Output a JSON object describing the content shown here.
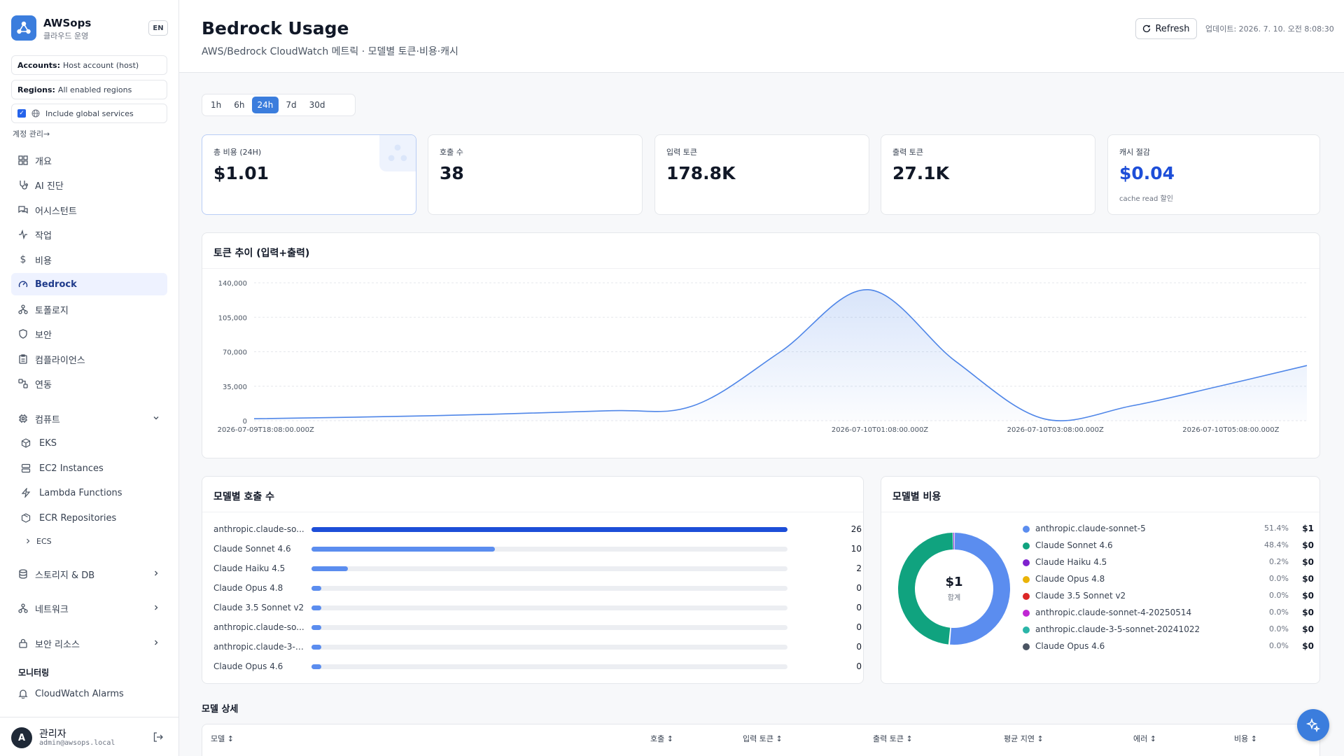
{
  "app": {
    "name": "AWSops",
    "subtitle": "클라우드 운영",
    "lang": "EN"
  },
  "filters": {
    "accounts_label": "Accounts:",
    "accounts_value": "Host account (host)",
    "regions_label": "Regions:",
    "regions_value": "All enabled regions",
    "include_global": "Include global services",
    "account_link": "계정 관리→"
  },
  "nav": {
    "items": [
      {
        "label": "개요",
        "icon": "grid-icon"
      },
      {
        "label": "AI 진단",
        "icon": "stethoscope-icon"
      },
      {
        "label": "어시스턴트",
        "icon": "chat-icon"
      },
      {
        "label": "작업",
        "icon": "activity-icon"
      },
      {
        "label": "비용",
        "icon": "dollar-icon"
      },
      {
        "label": "Bedrock",
        "icon": "gauge-icon"
      },
      {
        "label": "토폴로지",
        "icon": "network-icon"
      },
      {
        "label": "보안",
        "icon": "shield-icon"
      },
      {
        "label": "컴플라이언스",
        "icon": "clipboard-icon"
      },
      {
        "label": "연동",
        "icon": "link-icon"
      }
    ],
    "compute": {
      "label": "컴퓨트",
      "icon": "cpu-icon"
    },
    "compute_items": [
      {
        "label": "EKS",
        "icon": "box-icon"
      },
      {
        "label": "EC2 Instances",
        "icon": "server-icon"
      },
      {
        "label": "Lambda Functions",
        "icon": "bolt-icon"
      },
      {
        "label": "ECR Repositories",
        "icon": "package-icon"
      },
      {
        "label": "ECS",
        "icon": "chevron-right-icon"
      }
    ],
    "storage": {
      "label": "스토리지 & DB",
      "icon": "database-icon"
    },
    "network": {
      "label": "네트워크",
      "icon": "network-icon"
    },
    "security_resources": {
      "label": "보안 리소스",
      "icon": "lock-icon"
    },
    "monitoring_label": "모니터링",
    "cloudwatch": {
      "label": "CloudWatch Alarms",
      "icon": "bell-icon"
    }
  },
  "user": {
    "initial": "A",
    "name": "관리자",
    "email": "admin@awsops.local"
  },
  "header": {
    "title": "Bedrock Usage",
    "subtitle": "AWS/Bedrock CloudWatch 메트릭 · 모델별 토큰·비용·캐시",
    "refresh": "Refresh",
    "updated": "업데이트: 2026. 7. 10. 오전 8:08:30"
  },
  "ranges": [
    "1h",
    "6h",
    "24h",
    "7d",
    "30d"
  ],
  "active_range": "24h",
  "kpis": [
    {
      "label": "총 비용 (24H)",
      "value": "$1.01",
      "note": ""
    },
    {
      "label": "호출 수",
      "value": "38",
      "note": ""
    },
    {
      "label": "입력 토큰",
      "value": "178.8K",
      "note": ""
    },
    {
      "label": "출력 토큰",
      "value": "27.1K",
      "note": ""
    },
    {
      "label": "캐시 절감",
      "value": "$0.04",
      "note": "cache read 할인"
    }
  ],
  "token_chart_title": "토큰 추이 (입력+출력)",
  "calls_title": "모델별 호출 수",
  "cost_title": "모델별 비용",
  "donut": {
    "total": "$1",
    "label": "합계"
  },
  "detail_title": "모델 상세",
  "table_headers": [
    "모델 ↕",
    "호출 ↕",
    "입력 토큰 ↕",
    "출력 토큰 ↕",
    "평균 지연 ↕",
    "에러 ↕",
    "비용 ↕"
  ],
  "colors": {
    "accent": "#3b7ddd",
    "line": "#4f86e8",
    "savings": "#1d4ed8"
  },
  "chart_data": [
    {
      "type": "area",
      "title": "토큰 추이 (입력+출력)",
      "x": [
        "2026-07-09T18:00:00.000Z",
        "2026-07-09T20:00:00.000Z",
        "2026-07-09T22:00:00.000Z",
        "2026-07-09T23:00:00.000Z",
        "2026-07-10T00:00:00.000Z",
        "2026-07-10T01:00:00.000Z",
        "2026-07-10T02:00:00.000Z",
        "2026-07-10T03:00:00.000Z",
        "2026-07-10T04:00:00.000Z",
        "2026-07-10T05:00:00.000Z",
        "2026-07-10T06:00:00.000Z"
      ],
      "x_ticks": [
        "2026-07-09T18:08:00.000Z",
        "2026-07-10T01:08:00.000Z",
        "2026-07-10T03:08:00.000Z",
        "2026-07-10T05:08:00.000Z"
      ],
      "values": [
        2000,
        5000,
        10000,
        15000,
        70000,
        133000,
        60000,
        2000,
        15000,
        35000,
        56000
      ],
      "yticks": [
        0,
        35000,
        70000,
        105000,
        140000
      ],
      "ylim": [
        0,
        140000
      ],
      "grid": true
    },
    {
      "type": "bar",
      "orientation": "horizontal",
      "title": "모델별 호출 수",
      "categories": [
        "anthropic.claude-so...",
        "Claude Sonnet 4.6",
        "Claude Haiku 4.5",
        "Claude Opus 4.8",
        "Claude 3.5 Sonnet v2",
        "anthropic.claude-so...",
        "anthropic.claude-3-5...",
        "Claude Opus 4.6"
      ],
      "values": [
        26,
        10,
        2,
        0,
        0,
        0,
        0,
        0
      ]
    },
    {
      "type": "pie",
      "title": "모델별 비용",
      "categories": [
        "anthropic.claude-sonnet-5",
        "Claude Sonnet 4.6",
        "Claude Haiku 4.5",
        "Claude Opus 4.8",
        "Claude 3.5 Sonnet v2",
        "anthropic.claude-sonnet-4-20250514",
        "anthropic.claude-3-5-sonnet-20241022",
        "Claude Opus 4.6"
      ],
      "percents": [
        51.4,
        48.4,
        0.2,
        0.0,
        0.0,
        0.0,
        0.0,
        0.0
      ],
      "pct_labels": [
        "51.4%",
        "48.4%",
        "0.2%",
        "0.0%",
        "0.0%",
        "0.0%",
        "0.0%",
        "0.0%"
      ],
      "cost_labels": [
        "$1",
        "$0",
        "$0",
        "$0",
        "$0",
        "$0",
        "$0",
        "$0"
      ],
      "colors": [
        "#5b8def",
        "#10a37f",
        "#7e22ce",
        "#eab308",
        "#dc2626",
        "#c026d3",
        "#2bb5a8",
        "#4b5563"
      ]
    }
  ]
}
